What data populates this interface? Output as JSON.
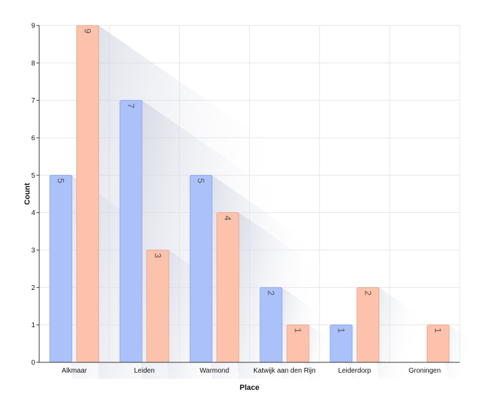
{
  "chart_data": {
    "type": "bar",
    "title": "",
    "xlabel": "Place",
    "ylabel": "Count",
    "ylim": [
      0,
      9
    ],
    "yticks": [
      0,
      1,
      2,
      3,
      4,
      5,
      6,
      7,
      8,
      9
    ],
    "grid": true,
    "categories": [
      "Alkmaar",
      "Leiden",
      "Warmond",
      "Katwijk aan den Rijn",
      "Leiderdorp",
      "Groningen"
    ],
    "series": [
      {
        "name": "series-1",
        "color": "#aac1f9",
        "border": "#8eaaf0",
        "values": [
          5,
          7,
          5,
          2,
          1,
          null
        ]
      },
      {
        "name": "series-2",
        "color": "#fdc2ac",
        "border": "#e8a88f",
        "values": [
          9,
          3,
          4,
          1,
          2,
          1
        ]
      }
    ]
  }
}
